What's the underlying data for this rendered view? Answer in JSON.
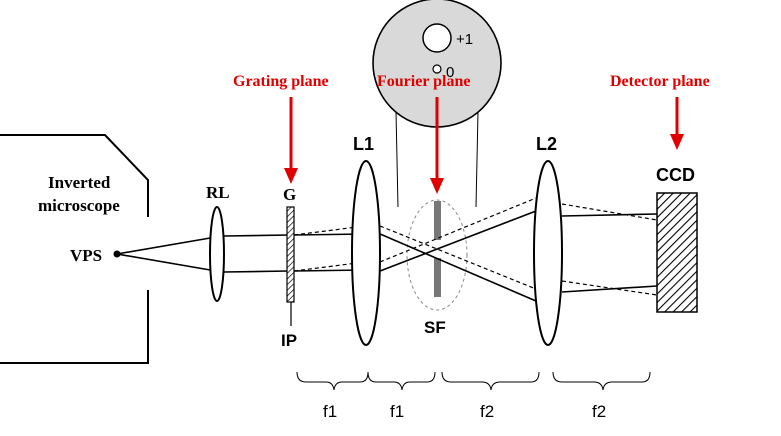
{
  "labels": {
    "inverted_microscope_line1": "Inverted",
    "inverted_microscope_line2": "microscope",
    "vps": "VPS",
    "rl": "RL",
    "g": "G",
    "ip": "IP",
    "l1": "L1",
    "l2": "L2",
    "sf": "SF",
    "ccd": "CCD",
    "grating_plane": "Grating plane",
    "fourier_plane": "Fourier plane",
    "detector_plane": "Detector plane",
    "order_plus1": "+1",
    "order_zero": "0"
  },
  "focal_labels": [
    "f1",
    "f1",
    "f2",
    "f2"
  ],
  "colors": {
    "plane_label": "#e00000",
    "arrow": "#e00000",
    "line": "#000000",
    "disk_fill": "#d9d9d9",
    "filter_bar": "#777777"
  }
}
